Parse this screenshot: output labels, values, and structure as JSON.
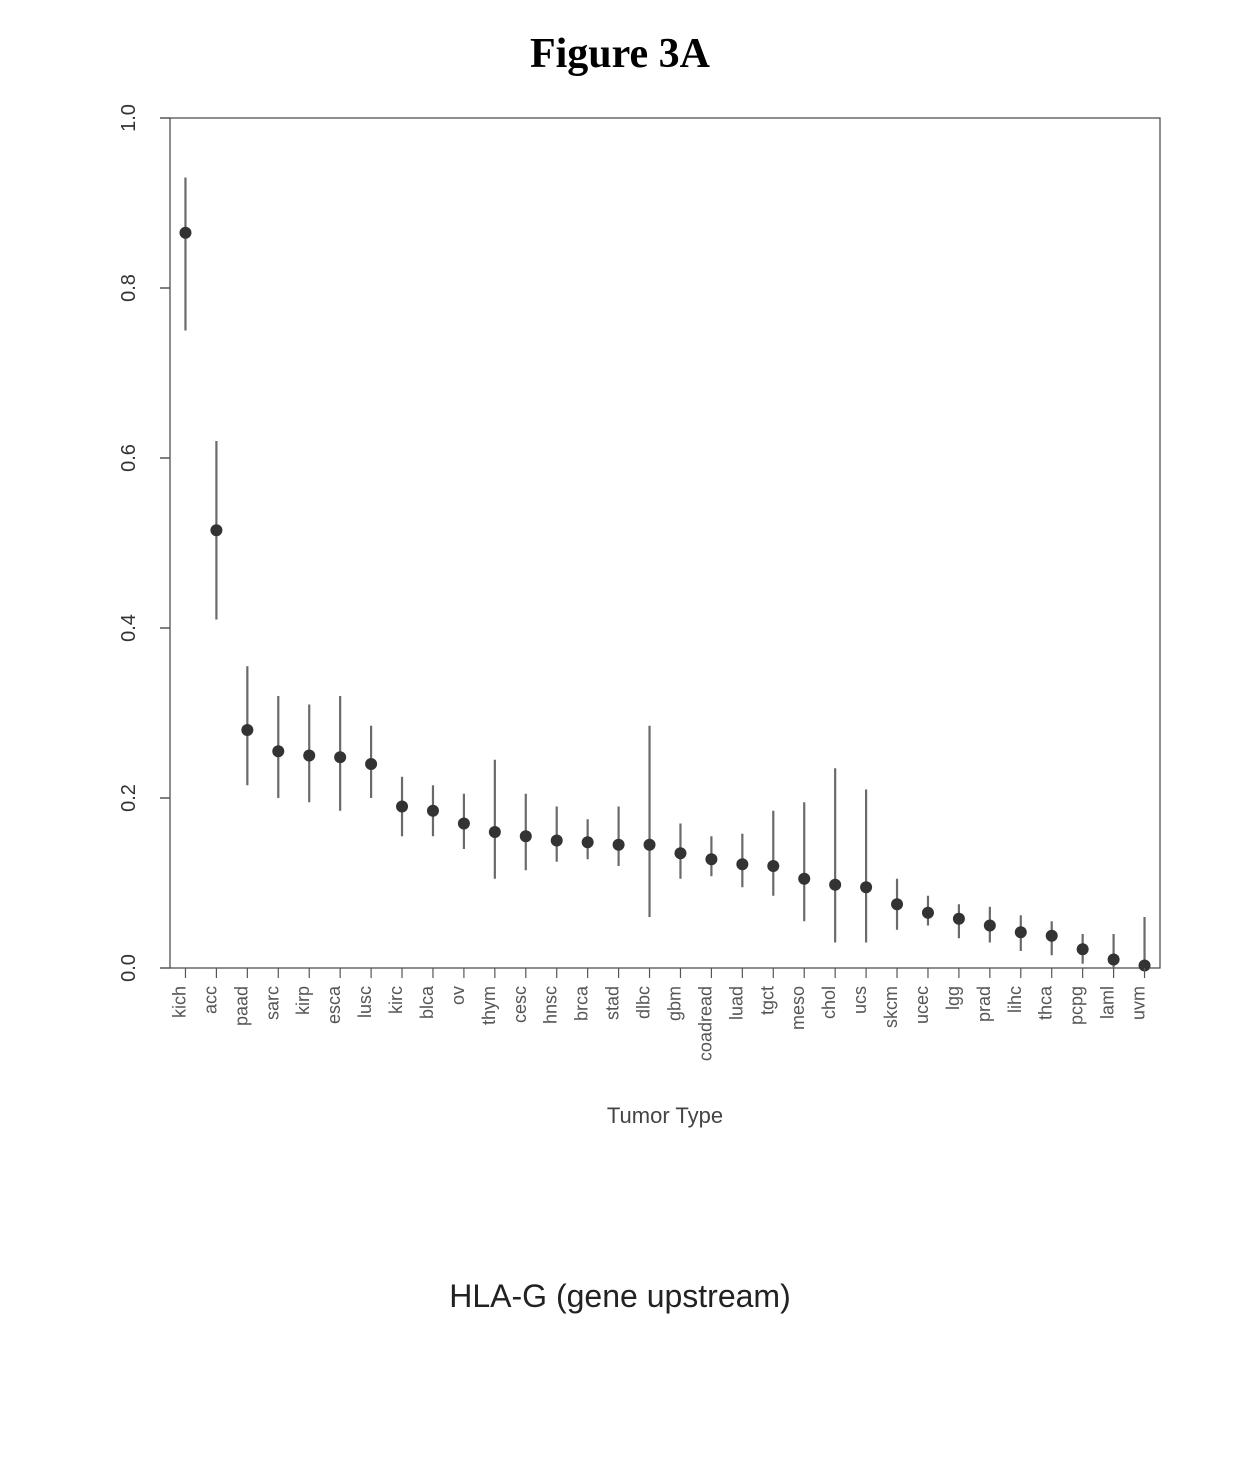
{
  "figure_title": "Figure 3A",
  "subtitle": "HLA-G (gene upstream)",
  "chart": {
    "type": "point-errorbar",
    "xlabel": "Tumor Type",
    "xlabel_fontsize": 22,
    "ylim": [
      0.0,
      1.0
    ],
    "yticks": [
      0.0,
      0.2,
      0.4,
      0.6,
      0.8,
      1.0
    ],
    "ytick_labels": [
      "0.0",
      "0.2",
      "0.4",
      "0.6",
      "0.8",
      "1.0"
    ],
    "tick_fontsize": 20,
    "xtick_fontsize": 18,
    "plot_box_color": "#444444",
    "plot_box_linewidth": 1.2,
    "tick_color": "#555555",
    "point_color": "#333333",
    "point_radius": 6,
    "errorbar_color": "#6a6a6a",
    "errorbar_linewidth": 2.2,
    "background_color": "#ffffff",
    "categories": [
      "kich",
      "acc",
      "paad",
      "sarc",
      "kirp",
      "esca",
      "lusc",
      "kirc",
      "blca",
      "ov",
      "thym",
      "cesc",
      "hnsc",
      "brca",
      "stad",
      "dlbc",
      "gbm",
      "coadread",
      "luad",
      "tgct",
      "meso",
      "chol",
      "ucs",
      "skcm",
      "ucec",
      "lgg",
      "prad",
      "lihc",
      "thca",
      "pcpg",
      "laml",
      "uvm"
    ],
    "values": [
      0.865,
      0.515,
      0.28,
      0.255,
      0.25,
      0.248,
      0.24,
      0.19,
      0.185,
      0.17,
      0.16,
      0.155,
      0.15,
      0.148,
      0.145,
      0.145,
      0.135,
      0.128,
      0.122,
      0.12,
      0.105,
      0.098,
      0.095,
      0.075,
      0.065,
      0.058,
      0.05,
      0.042,
      0.038,
      0.022,
      0.01,
      0.003
    ],
    "err_lo": [
      0.75,
      0.41,
      0.215,
      0.2,
      0.195,
      0.185,
      0.2,
      0.155,
      0.155,
      0.14,
      0.105,
      0.115,
      0.125,
      0.128,
      0.12,
      0.06,
      0.105,
      0.108,
      0.095,
      0.085,
      0.055,
      0.03,
      0.03,
      0.045,
      0.05,
      0.035,
      0.03,
      0.02,
      0.015,
      0.005,
      0.0,
      0.0
    ],
    "err_hi": [
      0.93,
      0.62,
      0.355,
      0.32,
      0.31,
      0.32,
      0.285,
      0.225,
      0.215,
      0.205,
      0.245,
      0.205,
      0.19,
      0.175,
      0.19,
      0.285,
      0.17,
      0.155,
      0.158,
      0.185,
      0.195,
      0.235,
      0.21,
      0.105,
      0.085,
      0.075,
      0.072,
      0.062,
      0.055,
      0.04,
      0.04,
      0.06
    ]
  }
}
